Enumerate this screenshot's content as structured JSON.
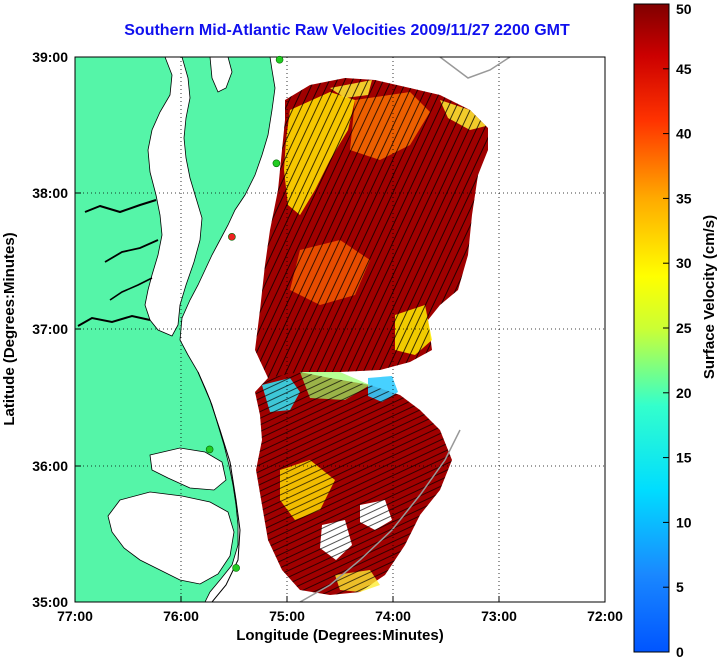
{
  "title": "Southern Mid-Atlantic Raw Velocities 2009/11/27 2200 GMT",
  "map": {
    "xlabel": "Longitude (Degrees:Minutes)",
    "ylabel": "Latitude (Degrees:Minutes)",
    "lon_range": [
      -77,
      -72
    ],
    "lat_range": [
      35,
      39
    ],
    "x_ticks": [
      "77:00",
      "76:00",
      "75:00",
      "74:00",
      "73:00",
      "72:00"
    ],
    "y_ticks": [
      "39:00",
      "38:00",
      "37:00",
      "36:00",
      "35:00"
    ],
    "land_color": "#55f5a8",
    "water_color": "#ffffff",
    "grid": "dotted"
  },
  "colorbar": {
    "label": "Surface Velocity (cm/s)",
    "ticks": [
      "50",
      "45",
      "40",
      "35",
      "30",
      "25",
      "20",
      "15",
      "10",
      "5",
      "0"
    ],
    "range": [
      0,
      50
    ],
    "colormap": "jet"
  },
  "stations": [
    {
      "name": "green-station",
      "lon": -75.07,
      "lat": 38.98,
      "color": "#22cc22"
    },
    {
      "name": "green-station",
      "lon": -75.1,
      "lat": 38.22,
      "color": "#22cc22"
    },
    {
      "name": "red-station",
      "lon": -75.52,
      "lat": 37.68,
      "color": "#ee2222"
    },
    {
      "name": "green-station",
      "lon": -75.73,
      "lat": 36.12,
      "color": "#22cc22"
    },
    {
      "name": "green-station",
      "lon": -75.48,
      "lat": 35.25,
      "color": "#22cc22"
    }
  ]
}
